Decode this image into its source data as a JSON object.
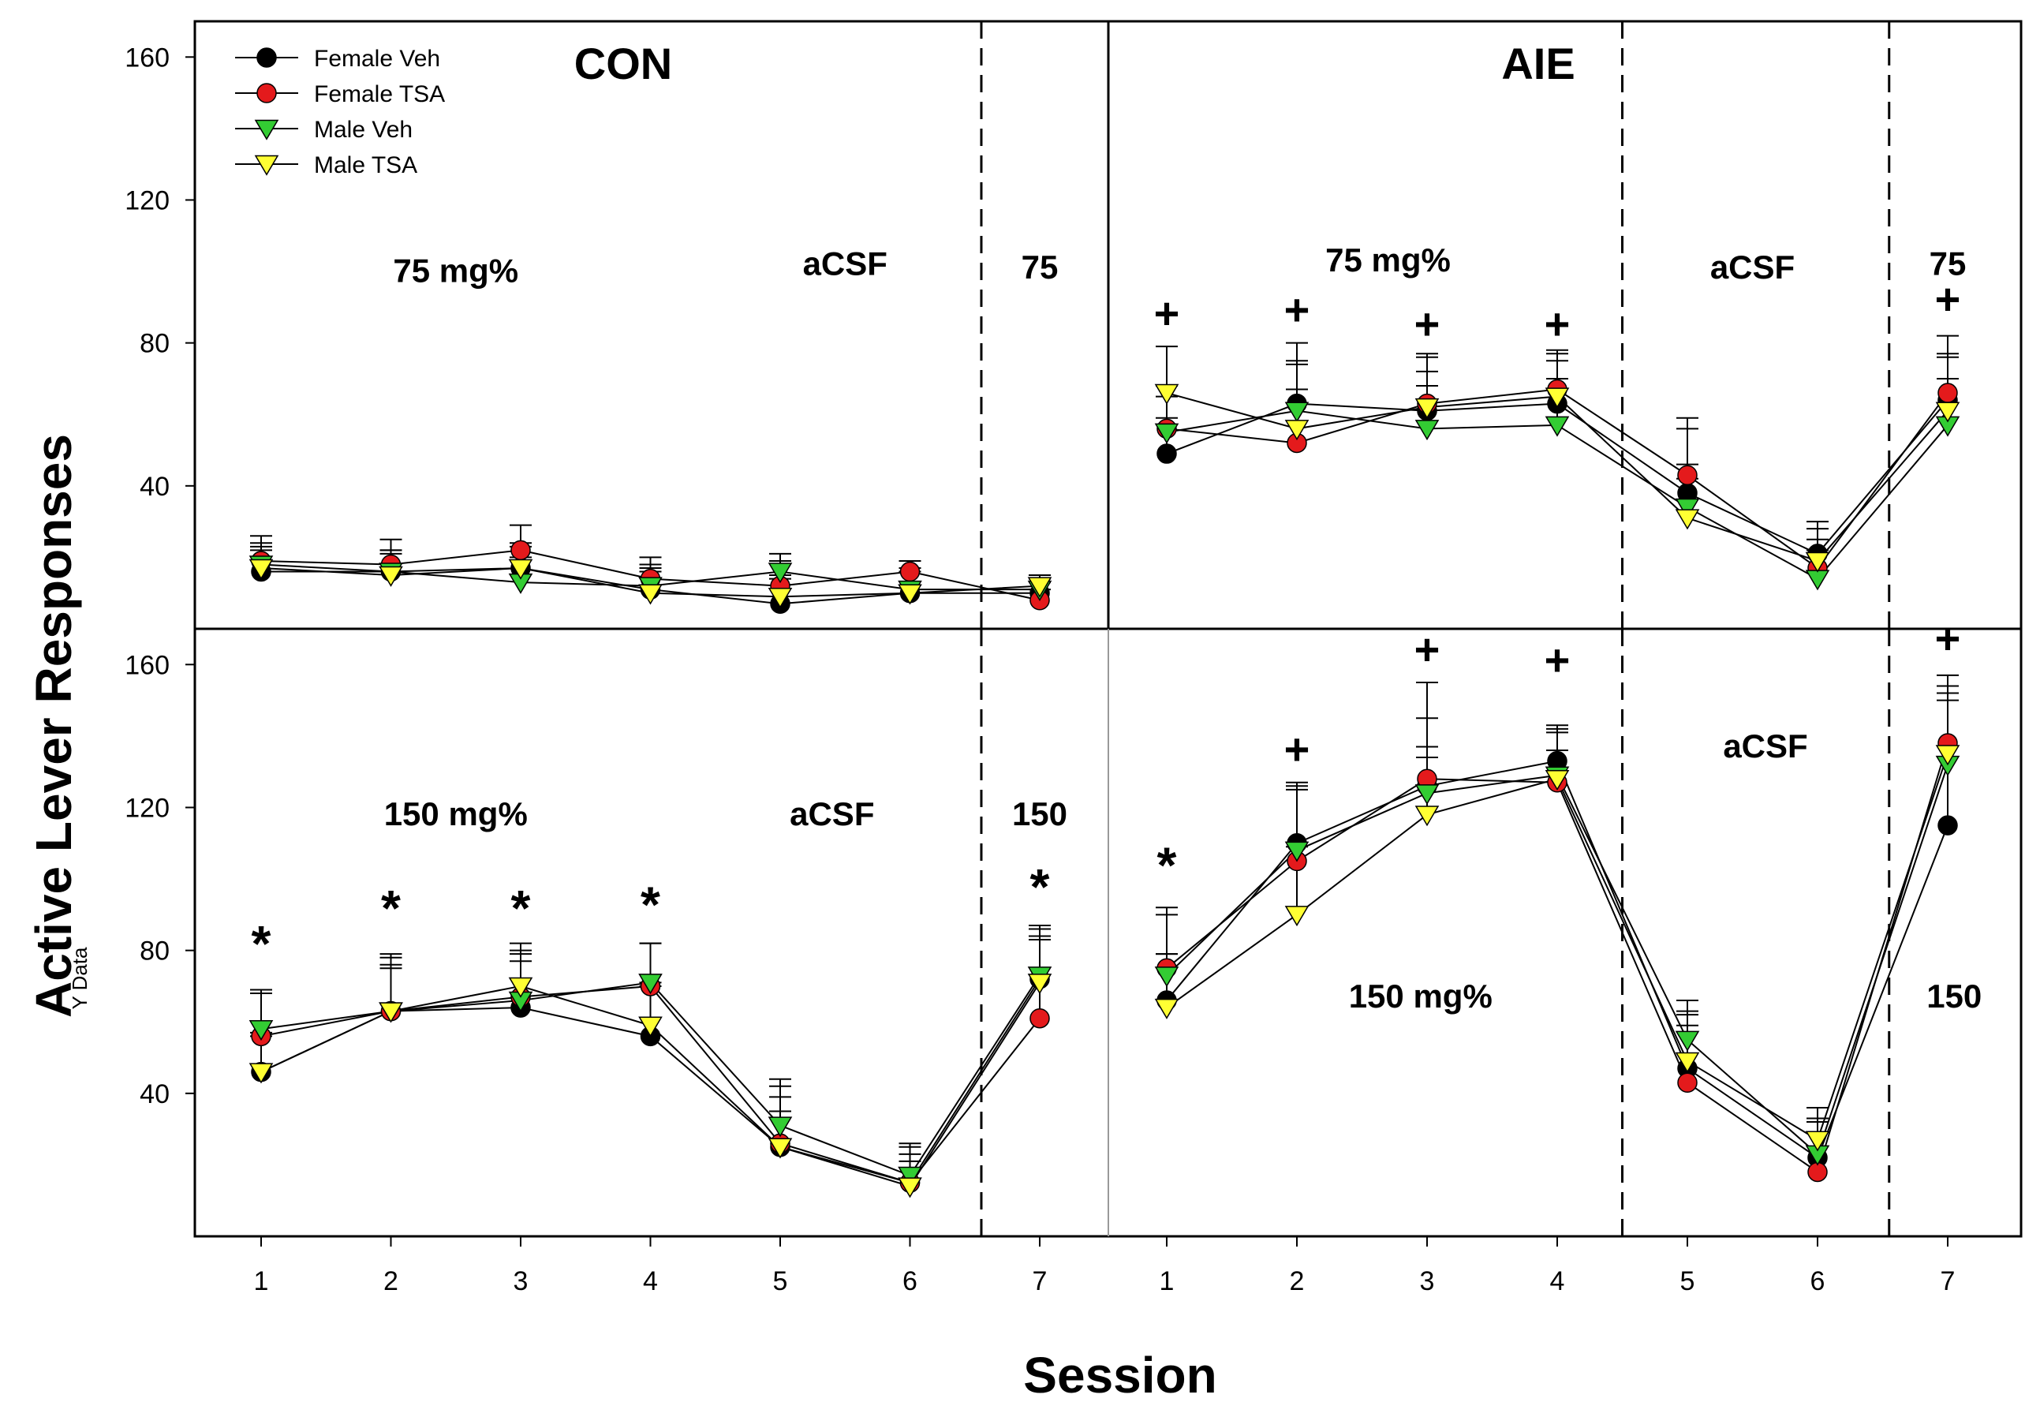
{
  "figure": {
    "ylabel": "Active Lever Responses",
    "ylabel_subscript": "Y Data",
    "xlabel": "Session"
  },
  "legend": {
    "items": [
      {
        "label": "Female Veh",
        "color": "#000000",
        "marker": "circle"
      },
      {
        "label": "Female TSA",
        "color": "#e41a1c",
        "marker": "circle"
      },
      {
        "label": "Male Veh",
        "color": "#33cc33",
        "marker": "triangle-down"
      },
      {
        "label": "Male TSA",
        "color": "#ffff33",
        "marker": "triangle-down"
      }
    ]
  },
  "chart_data": [
    {
      "type": "line",
      "panel": "top-left",
      "title": "CON",
      "categories": [
        "1",
        "2",
        "3",
        "4",
        "5",
        "6",
        "7"
      ],
      "ylim": [
        0,
        170
      ],
      "yticks": [
        "40",
        "80",
        "120",
        "160"
      ],
      "ticks_shown": [
        40,
        80,
        120,
        160
      ],
      "xlabel": "Session",
      "ylabel": "Active Lever Responses",
      "annotations": [
        {
          "text": "75 mg%",
          "session": 2.5,
          "y": 97
        },
        {
          "text": "aCSF",
          "session": 5.5,
          "y": 99
        },
        {
          "text": "75",
          "session": 7,
          "y": 98
        }
      ],
      "dividers": [
        6.55
      ],
      "series": [
        {
          "name": "Female Veh",
          "values": [
            16,
            16,
            17,
            11,
            7,
            10,
            10
          ]
        },
        {
          "name": "Female TSA",
          "values": [
            19,
            18,
            22,
            14,
            12,
            16,
            8
          ]
        },
        {
          "name": "Male Veh",
          "values": [
            18,
            16,
            13,
            12,
            16,
            11,
            11
          ]
        },
        {
          "name": "Male TSA",
          "values": [
            17,
            15,
            17,
            10,
            9,
            10,
            12
          ]
        }
      ],
      "error_upper": [
        {
          "name": "Female Veh",
          "values": [
            22,
            22,
            24,
            17,
            14,
            17,
            13
          ]
        },
        {
          "name": "Female TSA",
          "values": [
            26,
            25,
            29,
            20,
            19,
            19,
            11
          ]
        },
        {
          "name": "Male Veh",
          "values": [
            24,
            22,
            20,
            18,
            21,
            17,
            14
          ]
        },
        {
          "name": "Male TSA",
          "values": [
            23,
            21,
            23,
            16,
            15,
            16,
            15
          ]
        }
      ],
      "markers": []
    },
    {
      "type": "line",
      "panel": "top-right",
      "title": "AIE",
      "categories": [
        "1",
        "2",
        "3",
        "4",
        "5",
        "6",
        "7"
      ],
      "ylim": [
        0,
        170
      ],
      "yticks": [],
      "ticks_shown": [],
      "xlabel": "Session",
      "ylabel": "",
      "annotations": [
        {
          "text": "75 mg%",
          "session": 2.7,
          "y": 100
        },
        {
          "text": "aCSF",
          "session": 5.5,
          "y": 98
        },
        {
          "text": "75",
          "session": 7,
          "y": 99
        }
      ],
      "dividers": [
        4.5,
        6.55
      ],
      "series": [
        {
          "name": "Female Veh",
          "values": [
            49,
            63,
            61,
            63,
            38,
            21,
            64
          ]
        },
        {
          "name": "Female TSA",
          "values": [
            56,
            52,
            63,
            67,
            43,
            17,
            66
          ]
        },
        {
          "name": "Male Veh",
          "values": [
            55,
            61,
            56,
            57,
            34,
            14,
            57
          ]
        },
        {
          "name": "Male TSA",
          "values": [
            66,
            56,
            62,
            65,
            31,
            19,
            61
          ]
        }
      ],
      "error_upper": [
        {
          "name": "Female Veh",
          "values": [
            59,
            75,
            72,
            75,
            46,
            30,
            77
          ]
        },
        {
          "name": "Female TSA",
          "values": [
            68,
            67,
            76,
            78,
            56,
            25,
            82
          ]
        },
        {
          "name": "Male Veh",
          "values": [
            65,
            74,
            68,
            70,
            42,
            22,
            70
          ]
        },
        {
          "name": "Male TSA",
          "values": [
            79,
            80,
            77,
            77,
            59,
            28,
            76
          ]
        }
      ],
      "markers": [
        {
          "text": "+",
          "session": 1,
          "y": 84
        },
        {
          "text": "+",
          "session": 2,
          "y": 85
        },
        {
          "text": "+",
          "session": 3,
          "y": 81
        },
        {
          "text": "+",
          "session": 4,
          "y": 81
        },
        {
          "text": "+",
          "session": 7,
          "y": 88
        }
      ]
    },
    {
      "type": "line",
      "panel": "bottom-left",
      "title": "",
      "categories": [
        "1",
        "2",
        "3",
        "4",
        "5",
        "6",
        "7"
      ],
      "ylim": [
        0,
        170
      ],
      "yticks": [
        "40",
        "80",
        "120",
        "160"
      ],
      "ticks_shown": [
        40,
        80,
        120,
        160
      ],
      "xlabel": "Session",
      "ylabel": "Active Lever Responses",
      "annotations": [
        {
          "text": "150 mg%",
          "session": 2.5,
          "y": 115
        },
        {
          "text": "aCSF",
          "session": 5.4,
          "y": 115
        },
        {
          "text": "150",
          "session": 7,
          "y": 115
        }
      ],
      "dividers": [
        6.55
      ],
      "series": [
        {
          "name": "Female Veh",
          "values": [
            46,
            63,
            64,
            56,
            25,
            15,
            72
          ]
        },
        {
          "name": "Female TSA",
          "values": [
            56,
            63,
            67,
            70,
            26,
            15,
            61
          ]
        },
        {
          "name": "Male Veh",
          "values": [
            58,
            63,
            66,
            71,
            31,
            17,
            73
          ]
        },
        {
          "name": "Male TSA",
          "values": [
            46,
            63,
            70,
            59,
            25,
            14,
            71
          ]
        }
      ],
      "error_upper": [
        {
          "name": "Female Veh",
          "values": [
            56,
            76,
            77,
            70,
            39,
            23,
            84
          ]
        },
        {
          "name": "Female TSA",
          "values": [
            68,
            78,
            79,
            82,
            42,
            25,
            86
          ]
        },
        {
          "name": "Male Veh",
          "values": [
            69,
            79,
            82,
            82,
            44,
            26,
            87
          ]
        },
        {
          "name": "Male TSA",
          "values": [
            57,
            75,
            80,
            71,
            35,
            21,
            83
          ]
        }
      ],
      "markers": [
        {
          "text": "*",
          "session": 1,
          "y": 77
        },
        {
          "text": "*",
          "session": 2,
          "y": 87
        },
        {
          "text": "*",
          "session": 3,
          "y": 87
        },
        {
          "text": "*",
          "session": 4,
          "y": 88
        },
        {
          "text": "*",
          "session": 7,
          "y": 93
        }
      ]
    },
    {
      "type": "line",
      "panel": "bottom-right",
      "title": "",
      "categories": [
        "1",
        "2",
        "3",
        "4",
        "5",
        "6",
        "7"
      ],
      "ylim": [
        0,
        170
      ],
      "yticks": [],
      "ticks_shown": [],
      "xlabel": "Session",
      "ylabel": "",
      "annotations": [
        {
          "text": "150 mg%",
          "session": 2.95,
          "y": 64
        },
        {
          "text": "aCSF",
          "session": 5.6,
          "y": 134
        },
        {
          "text": "150",
          "session": 7.05,
          "y": 64
        }
      ],
      "dividers": [
        4.5,
        6.55
      ],
      "series": [
        {
          "name": "Female Veh",
          "values": [
            66,
            110,
            126,
            133,
            47,
            22,
            115
          ]
        },
        {
          "name": "Female TSA",
          "values": [
            75,
            105,
            128,
            127,
            43,
            18,
            138
          ]
        },
        {
          "name": "Male Veh",
          "values": [
            73,
            108,
            124,
            129,
            55,
            23,
            132
          ]
        },
        {
          "name": "Male TSA",
          "values": [
            64,
            90,
            118,
            128,
            49,
            27,
            135
          ]
        }
      ],
      "error_upper": [
        {
          "name": "Female Veh",
          "values": [
            79,
            125,
            137,
            142,
            62,
            32,
            150
          ]
        },
        {
          "name": "Female TSA",
          "values": [
            90,
            126,
            155,
            141,
            63,
            36,
            152
          ]
        },
        {
          "name": "Male Veh",
          "values": [
            92,
            127,
            145,
            143,
            66,
            33,
            154
          ]
        },
        {
          "name": "Male TSA",
          "values": [
            79,
            109,
            134,
            136,
            59,
            36,
            157
          ]
        }
      ],
      "markers": [
        {
          "text": "*",
          "session": 1,
          "y": 99
        },
        {
          "text": "+",
          "session": 2,
          "y": 132
        },
        {
          "text": "+",
          "session": 3,
          "y": 160
        },
        {
          "text": "+",
          "session": 4,
          "y": 157
        },
        {
          "text": "+",
          "session": 7,
          "y": 163
        }
      ]
    }
  ]
}
